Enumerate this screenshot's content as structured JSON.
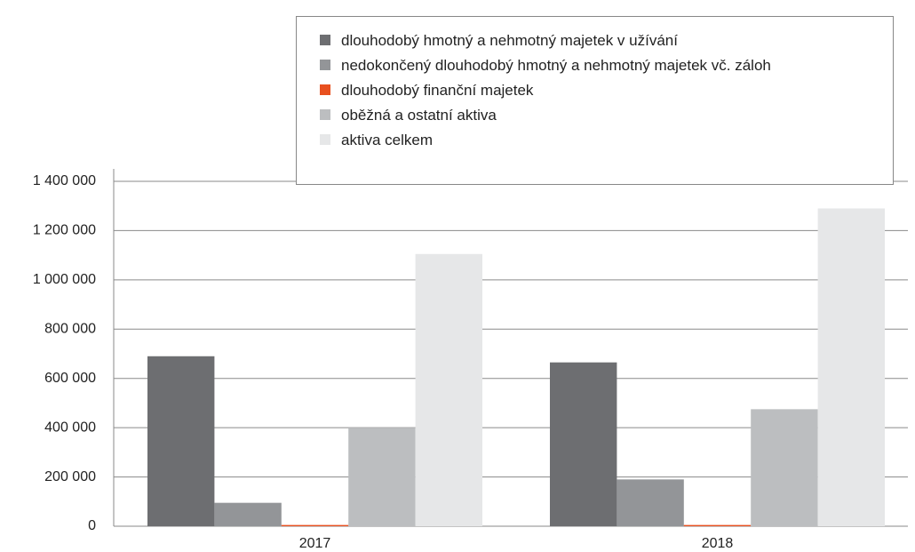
{
  "chart_data": {
    "type": "bar",
    "categories": [
      "2017",
      "2018"
    ],
    "series": [
      {
        "name": "dlouhodobý hmotný a nehmotný majetek v užívání",
        "color": "#6d6e71",
        "values": [
          690000,
          665000
        ]
      },
      {
        "name": "nedokončený dlouhodobý hmotný a nehmotný majetek vč. záloh",
        "color": "#939598",
        "values": [
          95000,
          190000
        ]
      },
      {
        "name": "dlouhodobý finanční majetek",
        "color": "#e8501f",
        "values": [
          5000,
          5000
        ]
      },
      {
        "name": "oběžná a ostatní aktiva",
        "color": "#bcbec0",
        "values": [
          400000,
          475000
        ]
      },
      {
        "name": "aktiva celkem",
        "color": "#e6e7e8",
        "values": [
          1105000,
          1290000
        ]
      }
    ],
    "ylim": [
      0,
      1400000
    ],
    "yticks": [
      0,
      {
        "value": 200000,
        "label": "200 000"
      },
      {
        "value": 400000,
        "label": "400 000"
      },
      {
        "value": 600000,
        "label": "600 000"
      },
      {
        "value": 800000,
        "label": "800 000"
      },
      {
        "value": 1000000,
        "label": "1 000 000"
      },
      {
        "value": 1200000,
        "label": "1 200 000"
      },
      {
        "value": 1400000,
        "label": "1 400 000"
      }
    ],
    "grid": true,
    "legend": "top-right"
  }
}
